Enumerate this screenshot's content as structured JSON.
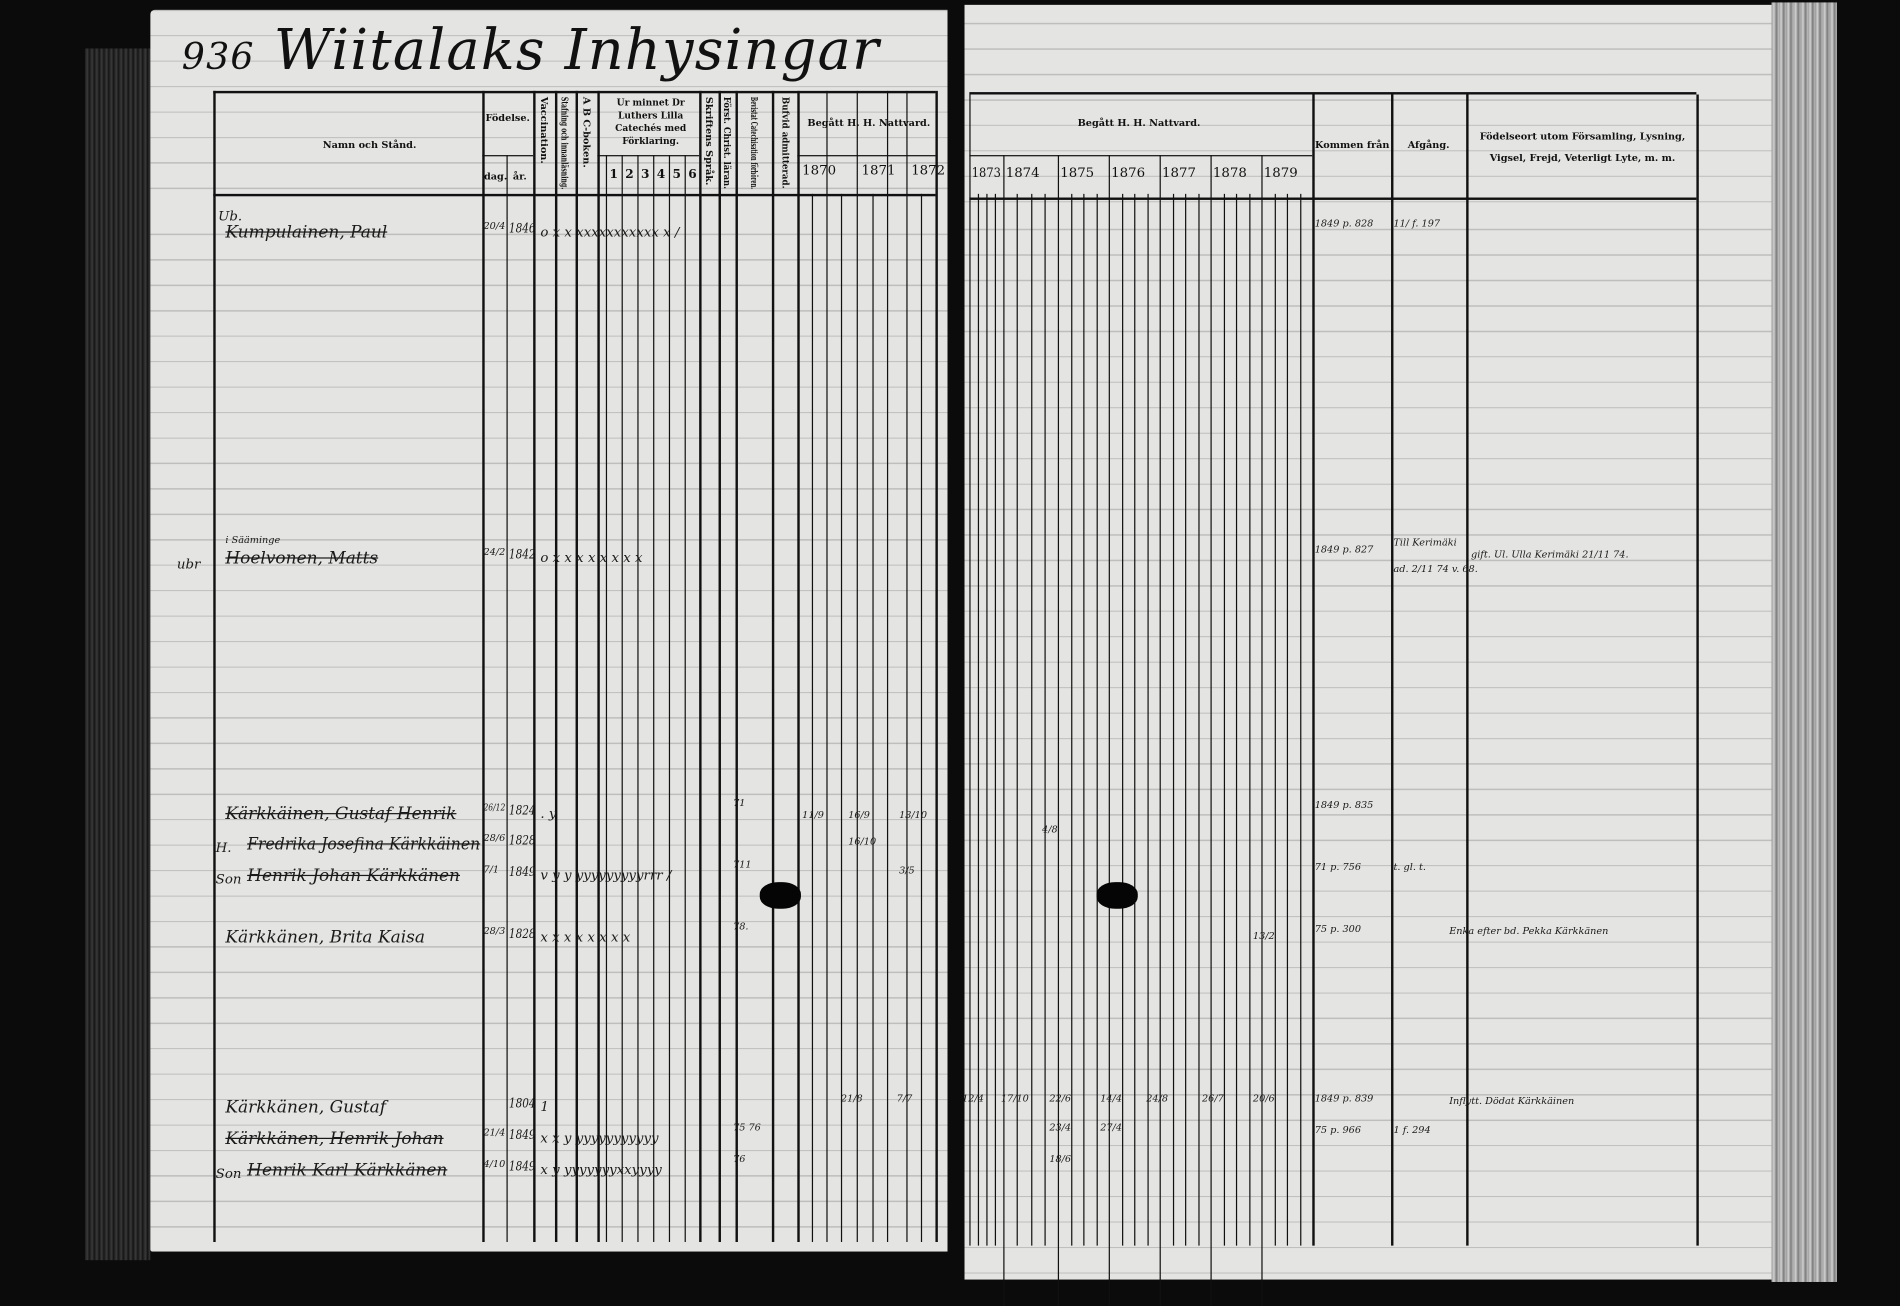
{
  "page_number": "936",
  "title": "Wiitalaks Inhysingar",
  "headers": {
    "namn": "Namn och Stånd.",
    "fodelse": "Födelse.",
    "dag": "dag.",
    "ar": "år.",
    "vaccination": "Vaccination.",
    "stafning": "Stafning och innanläsning.",
    "abc": "A B C-boken.",
    "ur_minnet": "Ur minnet Dr Luthers Lilla Catechés med Förklaring.",
    "nums": [
      "1",
      "2",
      "3",
      "4",
      "5",
      "6"
    ],
    "skriftens": "Skriftens Språk.",
    "forst": "Först. Christ. läran.",
    "bevistat": "Bevistat Catechisation förhören.",
    "bufvid": "Bufvid admitterad.",
    "nattvard_left": "Begått H. H. Nattvard.",
    "nattvard_right": "Begått H. H. Nattvard.",
    "years_left": [
      "1870",
      "1871",
      "1872"
    ],
    "years_right": [
      "1873",
      "1874",
      "1875",
      "1876",
      "1877",
      "1878",
      "1879"
    ],
    "kommen": "Kommen från",
    "afgang": "Afgång.",
    "fodelseort": "Födelseort utom Församling, Lysning, Vigsel, Frejd, Veterligt Lyte, m. m."
  },
  "entries": [
    {
      "prefix": "Ub.",
      "name": "Kumpulainen, Paul",
      "struck": true,
      "dag": "20/4",
      "ar": "1846",
      "marks": "o x  x xxxxxxxxxxx x  /",
      "kommen": "1849 p. 828",
      "afgang": "11/ f. 197"
    },
    {
      "prefix": "ubr",
      "note": "i Sääminge",
      "name": "Hoelvonen, Matts",
      "struck": true,
      "dag": "24/2",
      "ar": "1842",
      "marks": "o x  x  x  x  x  x  x  x",
      "kommen": "1849 p. 827",
      "afgang": "Till Kerimäki",
      "fodelseort": "gift. Ul. Ulla Kerimäki 21/11 74.",
      "fodelseort2": "ad. 2/11 74 v. 68."
    },
    {
      "name": "Kärkkäinen, Gustaf Henrik",
      "struck": true,
      "dag": "26/12",
      "ar": "1824",
      "marks": ".  y",
      "catech": "71",
      "kommen": "1849 p. 835"
    },
    {
      "prefix": "H.",
      "name": "Fredrika Josefina Kärkkäinen",
      "struck": true,
      "dag": "28/6",
      "ar": "1828"
    },
    {
      "prefix": "Son",
      "name": "Henrik Johan Kärkkänen",
      "struck": true,
      "dag": "7/1",
      "ar": "1849",
      "marks": "v  y  y yyyyyyyyyrrr /",
      "catech": "711",
      "kommen": "71 p. 756",
      "afgang": "t. gl. t."
    },
    {
      "name": "Kärkkänen, Brita Kaisa",
      "struck": false,
      "dag": "28/3",
      "ar": "1828",
      "marks": "x  x  x x x x  x x",
      "catech": "78.",
      "kommen": "75 p. 300",
      "fodelseort": "Enka efter bd. Pekka Kärkkänen"
    },
    {
      "name": "Kärkkänen, Gustaf",
      "struck": false,
      "ar": "1804",
      "marks": "1",
      "kommen": "1849 p. 839",
      "fodelseort": "Inflytt. Dödat Kärkkäinen"
    },
    {
      "name": "Kärkkänen, Henrik Johan",
      "struck": true,
      "dag": "21/4",
      "ar": "1849",
      "marks": "x  x  y yyyyyyyyyyy",
      "catech": "75 76",
      "kommen": "75 p. 966",
      "afgang": "1 f. 294"
    },
    {
      "prefix": "Son",
      "name": "Henrik Karl Kärkkänen",
      "struck": true,
      "dag": "4/10",
      "ar": "1849",
      "marks": "x  y  yyyyyyyxxyyyy",
      "catech": "76"
    }
  ],
  "communion_marks": [
    "11/9",
    "16/9",
    "13/10",
    "16/10",
    "4/8",
    "3/5",
    "21/8",
    "7/7",
    "12/4",
    "17/10",
    "22/6",
    "14/4",
    "24/8",
    "26/7",
    "20/6",
    "23/4",
    "27/4",
    "18/6",
    "13/2"
  ]
}
